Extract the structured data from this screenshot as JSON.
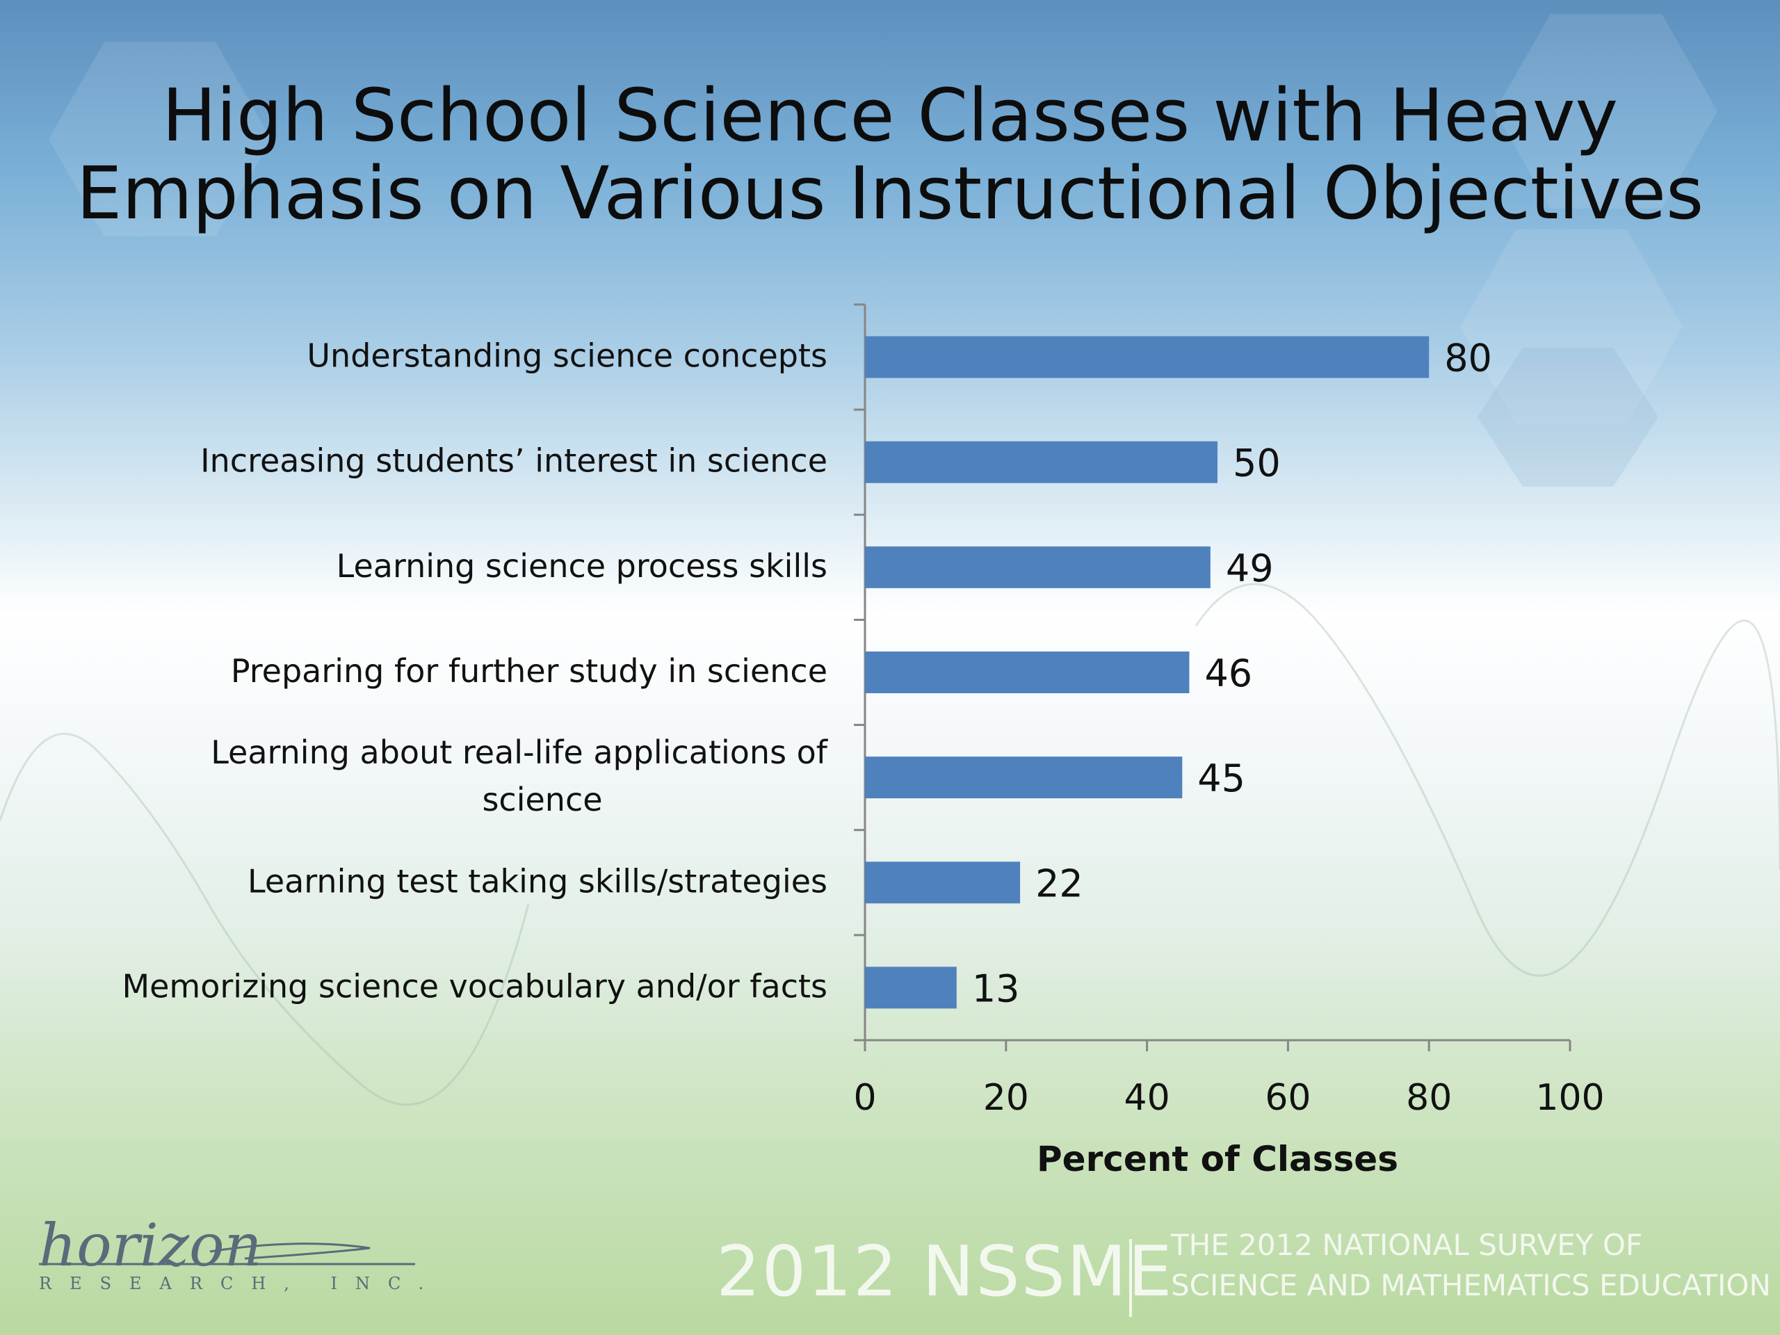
{
  "slide": {
    "title_lines": [
      "High School Science Classes with Heavy",
      "Emphasis on Various Instructional Objectives"
    ]
  },
  "chart_data": {
    "type": "bar",
    "orientation": "horizontal",
    "title": "High School Science Classes with Heavy Emphasis on Various Instructional Objectives",
    "categories": [
      [
        "Understanding science concepts"
      ],
      [
        "Increasing students’ interest in science"
      ],
      [
        "Learning science process skills"
      ],
      [
        "Preparing for further study in science"
      ],
      [
        "Learning about real-life applications of",
        "science"
      ],
      [
        "Learning test taking skills/strategies"
      ],
      [
        "Memorizing science vocabulary and/or facts"
      ]
    ],
    "values": [
      80,
      50,
      49,
      46,
      45,
      22,
      13
    ],
    "xlabel": "Percent of Classes",
    "ylabel": "",
    "xlim": [
      0,
      100
    ],
    "xticks": [
      0,
      20,
      40,
      60,
      80,
      100
    ],
    "bar_color": "#4f81bd",
    "grid": false,
    "legend": "none"
  },
  "footer": {
    "logo_word": "horizon",
    "logo_sub": "RESEARCH, INC.",
    "brand": "2012 NSSME",
    "tagline_lines": [
      "THE 2012 NATIONAL SURVEY OF",
      "SCIENCE AND MATHEMATICS EDUCATION"
    ]
  }
}
